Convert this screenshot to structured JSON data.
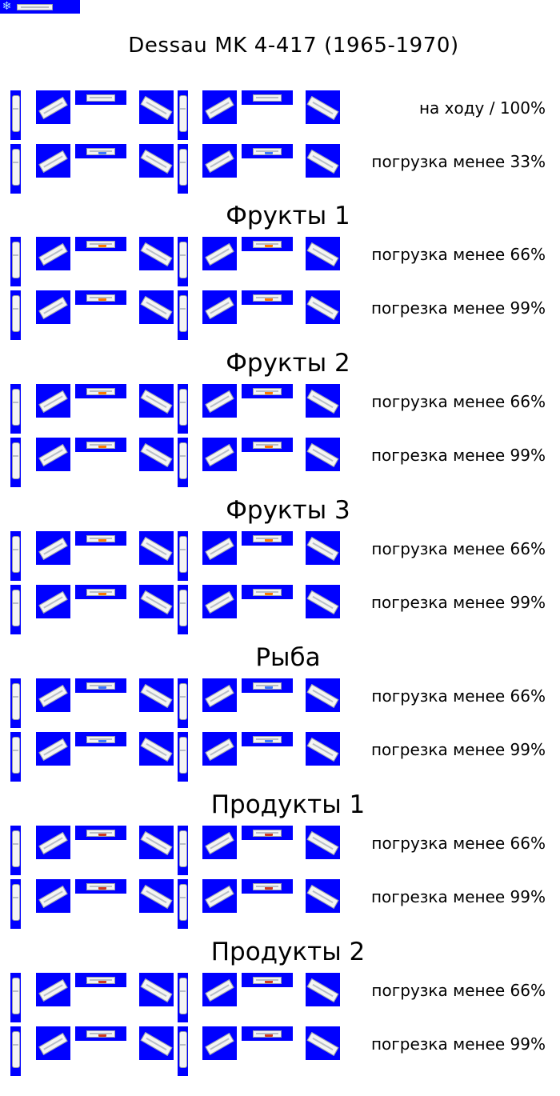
{
  "header_icon": "snowflake-icon",
  "header_preview": "wagon-sprite-preview",
  "title": "Dessau MK 4-417 (1965-1970)",
  "colors": {
    "sprite_bg": "#0000ff",
    "car_body": "#f4f4f4",
    "fruit": "#ff7a00",
    "fish": "#3c78ff",
    "products": "#d23a1f",
    "empty": "#9aa0a8"
  },
  "rows": [
    {
      "label": "на ходу / 100%",
      "cargo": "empty"
    },
    {
      "label": "погрузка менее 33%",
      "cargo": "fish"
    }
  ],
  "sections": [
    {
      "title": "Фрукты 1",
      "rows": [
        {
          "label": "погрузка менее 66%",
          "cargo": "fruit"
        },
        {
          "label": "погрезка менее 99%",
          "cargo": "fruit"
        }
      ]
    },
    {
      "title": "Фрукты 2",
      "rows": [
        {
          "label": "погрузка менее 66%",
          "cargo": "fruit"
        },
        {
          "label": "погрезка менее 99%",
          "cargo": "fruit"
        }
      ]
    },
    {
      "title": "Фрукты 3",
      "rows": [
        {
          "label": "погрузка менее 66%",
          "cargo": "fruit"
        },
        {
          "label": "погрезка менее 99%",
          "cargo": "fruit"
        }
      ]
    },
    {
      "title": "Рыба",
      "rows": [
        {
          "label": "погрузка менее 66%",
          "cargo": "fish"
        },
        {
          "label": "погрезка менее 99%",
          "cargo": "fish"
        }
      ]
    },
    {
      "title": "Продукты 1",
      "rows": [
        {
          "label": "погрузка менее 66%",
          "cargo": "products"
        },
        {
          "label": "погрезка менее 99%",
          "cargo": "products"
        }
      ]
    },
    {
      "title": "Продукты 2",
      "rows": [
        {
          "label": "погрузка менее 66%",
          "cargo": "products"
        },
        {
          "label": "погрезка менее 99%",
          "cargo": "products"
        }
      ]
    }
  ]
}
